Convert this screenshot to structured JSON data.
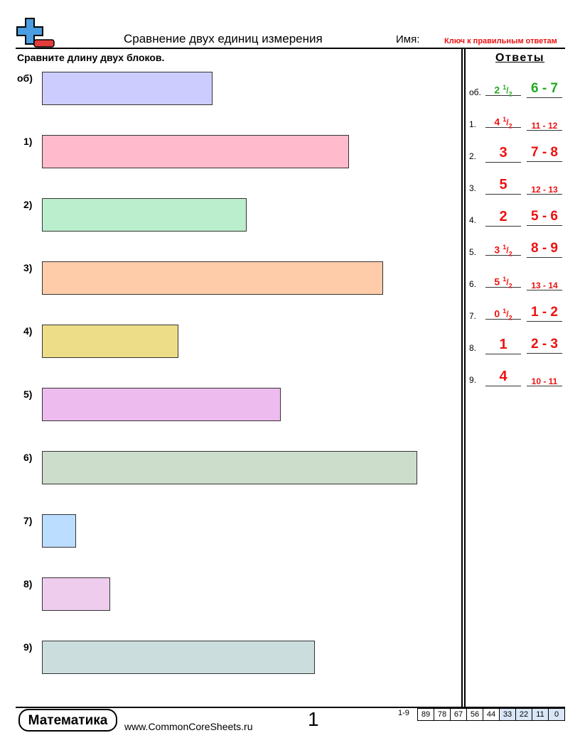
{
  "header": {
    "title": "Сравнение двух единиц измерения",
    "name_label": "Имя:",
    "key_label": "Ключ к правильным ответам"
  },
  "instructions": "Сравните длину двух блоков.",
  "answers_title": "Ответы",
  "problems": [
    {
      "label": "об)",
      "answer_label": "об.",
      "color": "#ccccff",
      "answer_color": "#22aa22",
      "length": {
        "whole": "2",
        "num": "1",
        "den": "2"
      },
      "range": "6 - 7"
    },
    {
      "label": "1)",
      "answer_label": "1.",
      "color": "#ffbbcc",
      "answer_color": "#ee1111",
      "length": {
        "whole": "4",
        "num": "1",
        "den": "2"
      },
      "range": "11 - 12"
    },
    {
      "label": "2)",
      "answer_label": "2.",
      "color": "#bbeecc",
      "answer_color": "#ee1111",
      "length": {
        "whole": "3"
      },
      "range": "7 - 8"
    },
    {
      "label": "3)",
      "answer_label": "3.",
      "color": "#ffccaa",
      "answer_color": "#ee1111",
      "length": {
        "whole": "5"
      },
      "range": "12 - 13"
    },
    {
      "label": "4)",
      "answer_label": "4.",
      "color": "#eedd88",
      "answer_color": "#ee1111",
      "length": {
        "whole": "2"
      },
      "range": "5 - 6"
    },
    {
      "label": "5)",
      "answer_label": "5.",
      "color": "#eebbee",
      "answer_color": "#ee1111",
      "length": {
        "whole": "3",
        "num": "1",
        "den": "2"
      },
      "range": "8 - 9"
    },
    {
      "label": "6)",
      "answer_label": "6.",
      "color": "#ccddcc",
      "answer_color": "#ee1111",
      "length": {
        "whole": "5",
        "num": "1",
        "den": "2"
      },
      "range": "13 - 14"
    },
    {
      "label": "7)",
      "answer_label": "7.",
      "color": "#bbddff",
      "answer_color": "#ee1111",
      "length": {
        "whole": "0",
        "num": "1",
        "den": "2"
      },
      "range": "1 - 2"
    },
    {
      "label": "8)",
      "answer_label": "8.",
      "color": "#eeccee",
      "answer_color": "#ee1111",
      "length": {
        "whole": "1"
      },
      "range": "2 - 3"
    },
    {
      "label": "9)",
      "answer_label": "9.",
      "color": "#ccdddd",
      "answer_color": "#ee1111",
      "length": {
        "whole": "4"
      },
      "range": "10 - 11"
    }
  ],
  "footer": {
    "brand": "Математика",
    "url": "www.CommonCoreSheets.ru",
    "page": "1",
    "score_label": "1-9",
    "scores": [
      89,
      78,
      67,
      56,
      44,
      33,
      22,
      11,
      0
    ]
  }
}
